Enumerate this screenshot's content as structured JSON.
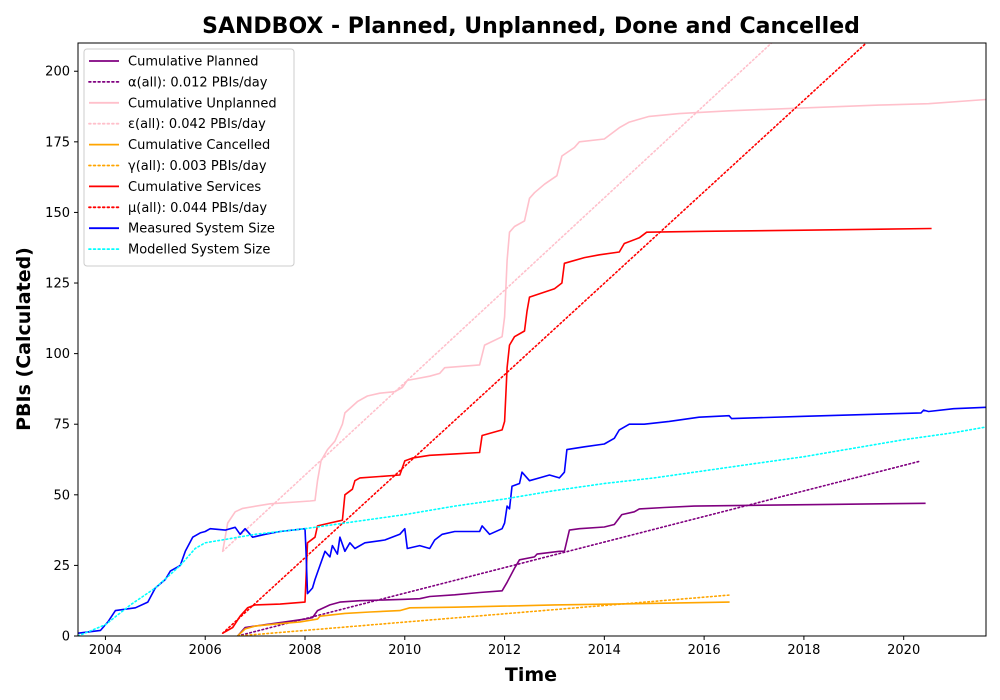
{
  "chart_data": {
    "type": "line",
    "title": "SANDBOX - Planned, Unplanned, Done  and Cancelled",
    "xlabel": "Time",
    "ylabel": "PBIs (Calculated)",
    "xlim": [
      2003.45,
      2021.65
    ],
    "ylim": [
      0,
      210
    ],
    "x_ticks": [
      2004,
      2006,
      2008,
      2010,
      2012,
      2014,
      2016,
      2018,
      2020
    ],
    "x_tick_labels": [
      "2004",
      "2006",
      "2008",
      "2010",
      "2012",
      "2014",
      "2016",
      "2018",
      "2020"
    ],
    "y_ticks": [
      0,
      25,
      50,
      75,
      100,
      125,
      150,
      175,
      200
    ],
    "y_tick_labels": [
      "0",
      "25",
      "50",
      "75",
      "100",
      "125",
      "150",
      "175",
      "200"
    ],
    "grid": false,
    "legend_position": "upper-left",
    "series": [
      {
        "name": "Cumulative Planned",
        "color": "#800080",
        "style": "solid",
        "points": [
          [
            2006.65,
            0
          ],
          [
            2006.8,
            3
          ],
          [
            2007.2,
            4
          ],
          [
            2007.6,
            5
          ],
          [
            2008.0,
            6
          ],
          [
            2008.15,
            6.5
          ],
          [
            2008.25,
            9
          ],
          [
            2008.5,
            11
          ],
          [
            2008.7,
            12
          ],
          [
            2009.1,
            12.5
          ],
          [
            2009.6,
            12.8
          ],
          [
            2010.0,
            13
          ],
          [
            2010.3,
            13.2
          ],
          [
            2010.5,
            14
          ],
          [
            2011.0,
            14.6
          ],
          [
            2011.5,
            15.4
          ],
          [
            2011.95,
            16
          ],
          [
            2012.05,
            19
          ],
          [
            2012.2,
            24
          ],
          [
            2012.3,
            27
          ],
          [
            2012.6,
            28
          ],
          [
            2012.65,
            29
          ],
          [
            2013.1,
            30
          ],
          [
            2013.2,
            30
          ],
          [
            2013.3,
            37.5
          ],
          [
            2013.5,
            38
          ],
          [
            2014.0,
            38.6
          ],
          [
            2014.2,
            39.5
          ],
          [
            2014.35,
            43
          ],
          [
            2014.6,
            44
          ],
          [
            2014.7,
            45
          ],
          [
            2015.2,
            45.5
          ],
          [
            2015.8,
            46
          ],
          [
            2017.0,
            46.3
          ],
          [
            2018.5,
            46.6
          ],
          [
            2020.44,
            47
          ]
        ]
      },
      {
        "name": "α(all): 0.012 PBIs/day",
        "color": "#800080",
        "style": "dotted",
        "points": [
          [
            2006.65,
            0
          ],
          [
            2020.35,
            62
          ]
        ]
      },
      {
        "name": "Cumulative Unplanned",
        "color": "#ffc0cb",
        "style": "solid",
        "points": [
          [
            2006.35,
            30
          ],
          [
            2006.45,
            40
          ],
          [
            2006.6,
            44
          ],
          [
            2006.75,
            45.2
          ],
          [
            2007.3,
            46.8
          ],
          [
            2008.1,
            47.8
          ],
          [
            2008.2,
            48
          ],
          [
            2008.25,
            55
          ],
          [
            2008.32,
            62
          ],
          [
            2008.45,
            66
          ],
          [
            2008.6,
            69
          ],
          [
            2008.75,
            75
          ],
          [
            2008.8,
            79
          ],
          [
            2009.05,
            83
          ],
          [
            2009.25,
            85
          ],
          [
            2009.5,
            86
          ],
          [
            2009.8,
            86.5
          ],
          [
            2009.95,
            88
          ],
          [
            2010.05,
            90.5
          ],
          [
            2010.2,
            91
          ],
          [
            2010.5,
            92
          ],
          [
            2010.7,
            93
          ],
          [
            2010.8,
            95
          ],
          [
            2011.5,
            96
          ],
          [
            2011.6,
            103
          ],
          [
            2011.95,
            106
          ],
          [
            2012.0,
            113
          ],
          [
            2012.05,
            133
          ],
          [
            2012.1,
            143
          ],
          [
            2012.2,
            145
          ],
          [
            2012.4,
            147
          ],
          [
            2012.5,
            155
          ],
          [
            2012.6,
            157
          ],
          [
            2012.8,
            160
          ],
          [
            2013.05,
            163
          ],
          [
            2013.15,
            170
          ],
          [
            2013.4,
            173
          ],
          [
            2013.5,
            175
          ],
          [
            2014.0,
            176
          ],
          [
            2014.15,
            178
          ],
          [
            2014.3,
            180
          ],
          [
            2014.5,
            182
          ],
          [
            2014.9,
            184
          ],
          [
            2015.5,
            185
          ],
          [
            2016.5,
            186
          ],
          [
            2018.0,
            187
          ],
          [
            2019.5,
            188
          ],
          [
            2020.5,
            188.5
          ],
          [
            2021.65,
            190
          ]
        ]
      },
      {
        "name": "ε(all): 0.042 PBIs/day",
        "color": "#ffc0cb",
        "style": "dotted",
        "points": [
          [
            2006.35,
            30
          ],
          [
            2017.35,
            210
          ]
        ]
      },
      {
        "name": "Cumulative Cancelled",
        "color": "#ffa500",
        "style": "solid",
        "points": [
          [
            2006.65,
            0
          ],
          [
            2006.8,
            2.5
          ],
          [
            2007.0,
            3.5
          ],
          [
            2007.4,
            4.2
          ],
          [
            2007.9,
            5
          ],
          [
            2008.25,
            6
          ],
          [
            2008.3,
            7
          ],
          [
            2008.8,
            8
          ],
          [
            2009.3,
            8.5
          ],
          [
            2009.9,
            9
          ],
          [
            2010.1,
            10
          ],
          [
            2011.0,
            10.2
          ],
          [
            2012.0,
            10.6
          ],
          [
            2013.0,
            11
          ],
          [
            2014.5,
            11.4
          ],
          [
            2016.51,
            12
          ]
        ]
      },
      {
        "name": "γ(all): 0.003 PBIs/day",
        "color": "#ffa500",
        "style": "dotted",
        "points": [
          [
            2006.65,
            0
          ],
          [
            2016.5,
            14.5
          ]
        ]
      },
      {
        "name": "Cumulative Services",
        "color": "#ff0000",
        "style": "solid",
        "points": [
          [
            2006.35,
            1
          ],
          [
            2006.55,
            3
          ],
          [
            2006.7,
            7
          ],
          [
            2006.85,
            10
          ],
          [
            2007.0,
            11
          ],
          [
            2007.5,
            11.3
          ],
          [
            2008.0,
            12
          ],
          [
            2008.05,
            33
          ],
          [
            2008.2,
            35
          ],
          [
            2008.25,
            39
          ],
          [
            2008.5,
            40
          ],
          [
            2008.75,
            41
          ],
          [
            2008.8,
            50
          ],
          [
            2008.95,
            52
          ],
          [
            2009.0,
            55
          ],
          [
            2009.1,
            56
          ],
          [
            2009.5,
            56.5
          ],
          [
            2009.9,
            57
          ],
          [
            2010.0,
            62
          ],
          [
            2010.15,
            63
          ],
          [
            2010.5,
            64
          ],
          [
            2011.0,
            64.5
          ],
          [
            2011.5,
            65
          ],
          [
            2011.55,
            71
          ],
          [
            2011.95,
            73
          ],
          [
            2012.0,
            76
          ],
          [
            2012.05,
            95
          ],
          [
            2012.1,
            103
          ],
          [
            2012.2,
            106
          ],
          [
            2012.4,
            108
          ],
          [
            2012.45,
            115
          ],
          [
            2012.5,
            120
          ],
          [
            2013.0,
            123
          ],
          [
            2013.15,
            125
          ],
          [
            2013.2,
            132
          ],
          [
            2013.6,
            134
          ],
          [
            2013.9,
            135
          ],
          [
            2014.3,
            136
          ],
          [
            2014.4,
            139
          ],
          [
            2014.7,
            141
          ],
          [
            2014.85,
            143
          ],
          [
            2016.0,
            143.3
          ],
          [
            2018.0,
            143.7
          ],
          [
            2020.56,
            144.3
          ]
        ]
      },
      {
        "name": "μ(all): 0.044 PBIs/day",
        "color": "#ff0000",
        "style": "dotted",
        "points": [
          [
            2006.35,
            1
          ],
          [
            2019.25,
            210
          ]
        ]
      },
      {
        "name": "Measured System Size",
        "color": "#0000ff",
        "style": "solid",
        "points": [
          [
            2003.45,
            1
          ],
          [
            2003.9,
            2
          ],
          [
            2004.05,
            5
          ],
          [
            2004.2,
            9
          ],
          [
            2004.6,
            10
          ],
          [
            2004.85,
            12
          ],
          [
            2005.0,
            17
          ],
          [
            2005.2,
            20
          ],
          [
            2005.3,
            23
          ],
          [
            2005.5,
            25
          ],
          [
            2005.6,
            30
          ],
          [
            2005.75,
            35
          ],
          [
            2005.9,
            36.5
          ],
          [
            2006.0,
            37
          ],
          [
            2006.1,
            38
          ],
          [
            2006.4,
            37.5
          ],
          [
            2006.6,
            38.5
          ],
          [
            2006.7,
            36
          ],
          [
            2006.8,
            38
          ],
          [
            2006.95,
            35
          ],
          [
            2007.2,
            36
          ],
          [
            2007.5,
            37
          ],
          [
            2008.0,
            38
          ],
          [
            2008.02,
            30
          ],
          [
            2008.05,
            15
          ],
          [
            2008.15,
            17
          ],
          [
            2008.2,
            20
          ],
          [
            2008.3,
            25
          ],
          [
            2008.4,
            30
          ],
          [
            2008.5,
            28
          ],
          [
            2008.55,
            32
          ],
          [
            2008.65,
            29
          ],
          [
            2008.7,
            35
          ],
          [
            2008.8,
            30
          ],
          [
            2008.9,
            33
          ],
          [
            2009.0,
            31
          ],
          [
            2009.2,
            33
          ],
          [
            2009.6,
            34
          ],
          [
            2009.9,
            36
          ],
          [
            2010.0,
            38
          ],
          [
            2010.05,
            31
          ],
          [
            2010.3,
            32
          ],
          [
            2010.5,
            31
          ],
          [
            2010.6,
            34
          ],
          [
            2010.75,
            36
          ],
          [
            2011.0,
            37
          ],
          [
            2011.5,
            37
          ],
          [
            2011.55,
            39
          ],
          [
            2011.7,
            36
          ],
          [
            2011.95,
            38
          ],
          [
            2012.0,
            40
          ],
          [
            2012.05,
            46
          ],
          [
            2012.1,
            45
          ],
          [
            2012.15,
            53
          ],
          [
            2012.3,
            54
          ],
          [
            2012.35,
            58
          ],
          [
            2012.5,
            55
          ],
          [
            2012.7,
            56
          ],
          [
            2012.9,
            57
          ],
          [
            2013.1,
            56
          ],
          [
            2013.2,
            58
          ],
          [
            2013.25,
            66
          ],
          [
            2013.6,
            67
          ],
          [
            2014.0,
            68
          ],
          [
            2014.2,
            70
          ],
          [
            2014.3,
            73
          ],
          [
            2014.5,
            75
          ],
          [
            2014.8,
            75
          ],
          [
            2015.3,
            76
          ],
          [
            2015.9,
            77.5
          ],
          [
            2016.5,
            78
          ],
          [
            2016.55,
            77
          ],
          [
            2018.0,
            77.8
          ],
          [
            2020.35,
            79
          ],
          [
            2020.4,
            80
          ],
          [
            2020.5,
            79.5
          ],
          [
            2021.0,
            80.5
          ],
          [
            2021.65,
            81
          ]
        ]
      },
      {
        "name": "Modelled System Size",
        "color": "#00ffff",
        "style": "dotted",
        "points": [
          [
            2003.45,
            0
          ],
          [
            2004.0,
            4
          ],
          [
            2004.5,
            11
          ],
          [
            2005.0,
            17
          ],
          [
            2005.5,
            25
          ],
          [
            2005.8,
            31
          ],
          [
            2006.0,
            33
          ],
          [
            2006.5,
            34.5
          ],
          [
            2007.0,
            36
          ],
          [
            2007.5,
            37
          ],
          [
            2008.0,
            38
          ],
          [
            2009.0,
            40.5
          ],
          [
            2010.0,
            43
          ],
          [
            2011.0,
            46
          ],
          [
            2012.0,
            48.5
          ],
          [
            2013.0,
            51.5
          ],
          [
            2014.0,
            54
          ],
          [
            2015.0,
            56
          ],
          [
            2016.0,
            58.5
          ],
          [
            2017.0,
            61
          ],
          [
            2018.0,
            63.5
          ],
          [
            2019.0,
            66.5
          ],
          [
            2020.0,
            69.5
          ],
          [
            2021.0,
            72
          ],
          [
            2021.65,
            74
          ]
        ]
      }
    ]
  }
}
